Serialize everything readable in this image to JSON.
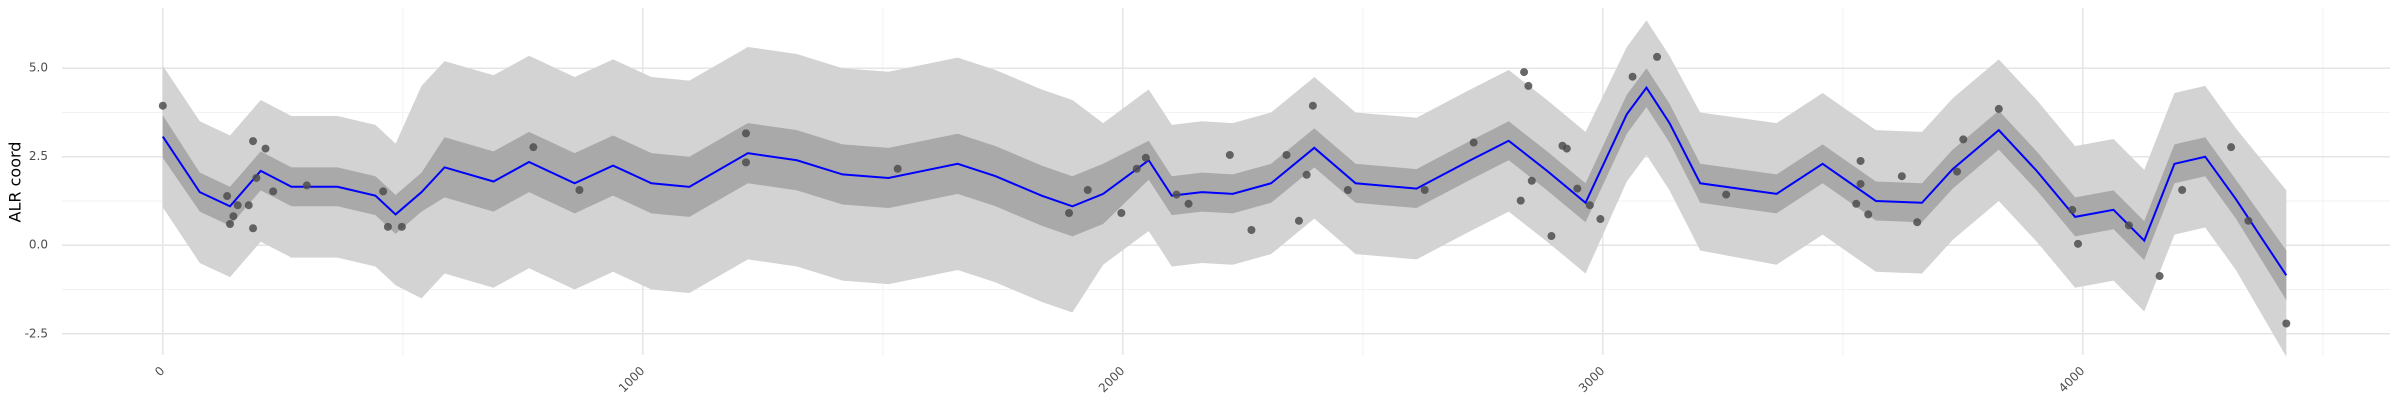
{
  "chart_data": {
    "type": "gp",
    "y_label": "ALR coord",
    "xlim": [
      -210,
      4640
    ],
    "ylim": [
      -3.1,
      6.7
    ],
    "xticks": [
      0,
      1000,
      2000,
      3000,
      4000
    ],
    "yticks": [
      {
        "value": -2.5,
        "label": "-2.5"
      },
      {
        "value": 0,
        "label": "0.0"
      },
      {
        "value": 2.5,
        "label": "2.5"
      },
      {
        "value": 5,
        "label": "5.0"
      }
    ],
    "xminor": [
      500,
      1500,
      2500,
      3500,
      4500
    ],
    "yminor": [
      -1.25,
      1.25,
      3.75
    ],
    "grid": true,
    "line_color": "#0000ff",
    "inner_color": "#a9a9a9",
    "outer_color": "#d3d3d3",
    "point_color": "#4d4d4d",
    "x": [
      0,
      77,
      140,
      204,
      268,
      364,
      443,
      485,
      539,
      587,
      689,
      763,
      858,
      938,
      1018,
      1097,
      1219,
      1321,
      1416,
      1512,
      1656,
      1735,
      1831,
      1895,
      1959,
      2054,
      2102,
      2165,
      2229,
      2309,
      2399,
      2485,
      2612,
      2724,
      2804,
      2884,
      2964,
      3050,
      3091,
      3139,
      3203,
      3362,
      3458,
      3569,
      3665,
      3729,
      3825,
      3904,
      3984,
      4064,
      4128,
      4191,
      4255,
      4319,
      4424
    ],
    "mean": [
      3.07,
      1.5,
      1.1,
      2.1,
      1.65,
      1.65,
      1.4,
      0.87,
      1.5,
      2.2,
      1.8,
      2.35,
      1.75,
      2.25,
      1.75,
      1.65,
      2.6,
      2.4,
      2.0,
      1.9,
      2.3,
      1.95,
      1.4,
      1.1,
      1.45,
      2.4,
      1.4,
      1.5,
      1.45,
      1.75,
      2.75,
      1.75,
      1.6,
      2.4,
      2.95,
      2.1,
      1.2,
      3.7,
      4.45,
      3.45,
      1.75,
      1.45,
      2.3,
      1.25,
      1.2,
      2.15,
      3.25,
      2.1,
      0.8,
      1.0,
      0.13,
      2.3,
      2.5,
      1.3,
      -0.85
    ],
    "inner_lower": [
      2.47,
      0.95,
      0.55,
      1.55,
      1.1,
      1.1,
      0.85,
      0.32,
      0.95,
      1.35,
      0.95,
      1.5,
      0.9,
      1.4,
      0.9,
      0.8,
      1.75,
      1.55,
      1.15,
      1.05,
      1.45,
      1.1,
      0.55,
      0.25,
      0.6,
      1.85,
      0.85,
      0.95,
      0.9,
      1.2,
      2.2,
      1.2,
      1.05,
      1.85,
      2.4,
      1.55,
      0.65,
      3.15,
      3.9,
      2.9,
      1.2,
      0.9,
      1.75,
      0.7,
      0.65,
      1.6,
      2.7,
      1.55,
      0.25,
      0.45,
      -0.42,
      1.75,
      1.95,
      0.75,
      -1.55
    ],
    "inner_upper": [
      3.67,
      2.05,
      1.65,
      2.65,
      2.2,
      2.2,
      1.95,
      1.42,
      2.05,
      3.05,
      2.65,
      3.2,
      2.6,
      3.1,
      2.6,
      2.5,
      3.45,
      3.25,
      2.85,
      2.75,
      3.15,
      2.8,
      2.25,
      1.95,
      2.3,
      2.95,
      1.95,
      2.05,
      2.0,
      2.3,
      3.3,
      2.3,
      2.15,
      2.95,
      3.5,
      2.65,
      1.75,
      4.25,
      5.0,
      4.0,
      2.3,
      2.0,
      2.85,
      1.8,
      1.75,
      2.7,
      3.8,
      2.65,
      1.35,
      1.55,
      0.68,
      2.85,
      3.05,
      1.85,
      -0.15
    ],
    "outer_lower": [
      1.07,
      -0.5,
      -0.9,
      0.1,
      -0.35,
      -0.35,
      -0.6,
      -1.13,
      -1.5,
      -0.8,
      -1.2,
      -0.65,
      -1.25,
      -0.75,
      -1.25,
      -1.35,
      -0.4,
      -0.6,
      -1.0,
      -1.1,
      -0.7,
      -1.05,
      -1.6,
      -1.9,
      -0.55,
      0.4,
      -0.6,
      -0.5,
      -0.55,
      -0.25,
      0.75,
      -0.25,
      -0.4,
      0.4,
      0.95,
      0.1,
      -0.8,
      1.8,
      2.55,
      1.55,
      -0.15,
      -0.55,
      0.3,
      -0.75,
      -0.8,
      0.15,
      1.25,
      0.1,
      -1.2,
      -1.0,
      -1.87,
      0.3,
      0.5,
      -0.7,
      -3.15
    ],
    "outer_upper": [
      5.07,
      3.5,
      3.1,
      4.1,
      3.65,
      3.65,
      3.4,
      2.87,
      4.5,
      5.2,
      4.8,
      5.35,
      4.75,
      5.25,
      4.75,
      4.65,
      5.6,
      5.4,
      5.0,
      4.9,
      5.3,
      4.95,
      4.4,
      4.1,
      3.45,
      4.4,
      3.4,
      3.5,
      3.45,
      3.75,
      4.75,
      3.75,
      3.6,
      4.4,
      4.95,
      4.1,
      3.2,
      5.6,
      6.35,
      5.35,
      3.75,
      3.45,
      4.3,
      3.25,
      3.2,
      4.15,
      5.25,
      4.1,
      2.8,
      3.0,
      2.13,
      4.3,
      4.5,
      3.3,
      1.55
    ],
    "points": {
      "x": [
        0,
        134,
        140,
        147,
        156,
        179,
        188,
        195,
        188,
        214,
        230,
        300,
        459,
        469,
        498,
        772,
        868,
        1215,
        1215,
        1531,
        1888,
        1927,
        1997,
        2029,
        2048,
        2112,
        2137,
        2223,
        2268,
        2341,
        2367,
        2383,
        2396,
        2469,
        2629,
        2731,
        2829,
        2836,
        2845,
        2852,
        2893,
        2916,
        2925,
        2947,
        2973,
        2995,
        3062,
        3113,
        3257,
        3537,
        3528,
        3537,
        3553,
        3623,
        3655,
        3738,
        3751,
        3825,
        3978,
        3990,
        4096,
        4160,
        4207,
        4309,
        4345,
        4424
      ],
      "y": [
        3.94,
        1.39,
        0.6,
        0.82,
        1.13,
        1.13,
        2.94,
        1.9,
        0.48,
        2.73,
        1.52,
        1.69,
        1.52,
        0.52,
        0.52,
        2.77,
        1.56,
        3.16,
        2.34,
        2.16,
        0.91,
        1.56,
        0.91,
        2.16,
        2.47,
        1.43,
        1.17,
        2.55,
        0.43,
        2.55,
        0.69,
        1.99,
        3.94,
        1.56,
        1.56,
        2.9,
        1.26,
        4.89,
        4.5,
        1.82,
        0.26,
        2.81,
        2.73,
        1.6,
        1.13,
        0.74,
        4.76,
        5.32,
        1.43,
        2.38,
        1.17,
        1.73,
        0.87,
        1.95,
        0.65,
        2.08,
        2.99,
        3.85,
        1.0,
        0.04,
        0.56,
        -0.87,
        1.56,
        2.77,
        0.69,
        -2.21
      ]
    }
  }
}
